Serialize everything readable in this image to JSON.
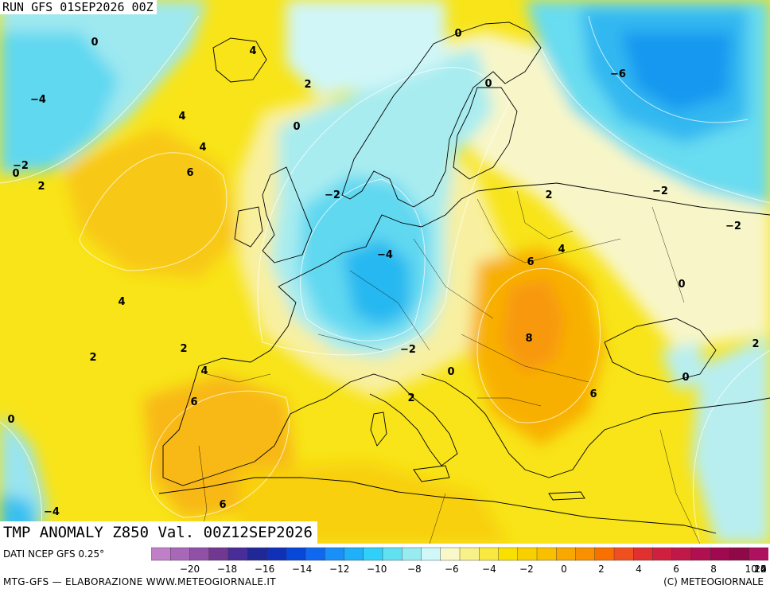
{
  "header": {
    "run": "RUN GFS 01SEP2026 00Z"
  },
  "title": "TMP ANOMALY Z850 Val. 00Z12SEP2026",
  "footer": {
    "source": "DATI NCEP GFS 0.25°",
    "credit": "MTG-GFS — ELABORAZIONE WWW.METEOGIORNALE.IT",
    "copyright": "(C) METEOGIORNALE"
  },
  "colorbar": {
    "tick_labels": [
      "−20",
      "−18",
      "−16",
      "−14",
      "−12",
      "−10",
      "−8",
      "−6",
      "−4",
      "−2",
      "0",
      "2",
      "4",
      "6",
      "8",
      "10",
      "12",
      "14",
      "16",
      "20"
    ],
    "colors": [
      "#c080c8",
      "#a868b8",
      "#9050a8",
      "#703890",
      "#482c98",
      "#202898",
      "#1030b8",
      "#0848d8",
      "#1068f0",
      "#1890f8",
      "#20b0f8",
      "#30d0f8",
      "#60e0f0",
      "#98ecf0",
      "#d0f8f8",
      "#f8f8c8",
      "#f8f088",
      "#f8e840",
      "#f8e000",
      "#f8d000",
      "#f8c000",
      "#f8a800",
      "#f89000",
      "#f87000",
      "#f05020",
      "#e03030",
      "#d02040",
      "#c01848",
      "#b01050",
      "#a00850",
      "#900848",
      "#b01060"
    ]
  },
  "contour_labels": [
    {
      "text": "0",
      "pos": "Atlantic north"
    },
    {
      "text": "4",
      "pos": "Iceland"
    },
    {
      "text": "2",
      "pos": "Norwegian Sea"
    },
    {
      "text": "0",
      "pos": "Norway coast"
    },
    {
      "text": "0",
      "pos": "Barents"
    },
    {
      "text": "0",
      "pos": "Finland"
    },
    {
      "text": "−6",
      "pos": "Russia north"
    },
    {
      "text": "−4",
      "pos": "Greenland"
    },
    {
      "text": "4",
      "pos": "Atlantic A"
    },
    {
      "text": "4",
      "pos": "Atlantic B"
    },
    {
      "text": "6",
      "pos": "Atlantic C"
    },
    {
      "text": "−2",
      "pos": "Atlantic west"
    },
    {
      "text": "0",
      "pos": "Atlantic west 2"
    },
    {
      "text": "2",
      "pos": "Atlantic west 3"
    },
    {
      "text": "−2",
      "pos": "North Sea"
    },
    {
      "text": "2",
      "pos": "Baltic states"
    },
    {
      "text": "−2",
      "pos": "Russia"
    },
    {
      "text": "−2",
      "pos": "Russia east"
    },
    {
      "text": "−4",
      "pos": "Germany"
    },
    {
      "text": "6",
      "pos": "Ukraine west"
    },
    {
      "text": "4",
      "pos": "Ukraine"
    },
    {
      "text": "0",
      "pos": "Ukraine east"
    },
    {
      "text": "4",
      "pos": "Biscay"
    },
    {
      "text": "2",
      "pos": "Atlantic SW"
    },
    {
      "text": "8",
      "pos": "Romania"
    },
    {
      "text": "2",
      "pos": "Black Sea east"
    },
    {
      "text": "2",
      "pos": "Bay of Biscay"
    },
    {
      "text": "4",
      "pos": "Spain north"
    },
    {
      "text": "−2",
      "pos": "Alps"
    },
    {
      "text": "0",
      "pos": "Italy north"
    },
    {
      "text": "0",
      "pos": "Black Sea"
    },
    {
      "text": "6",
      "pos": "Portugal"
    },
    {
      "text": "2",
      "pos": "Tyrrhenian"
    },
    {
      "text": "6",
      "pos": "Balkans"
    },
    {
      "text": "0",
      "pos": "Atlantic south"
    },
    {
      "text": "6",
      "pos": "Algeria"
    },
    {
      "text": "−4",
      "pos": "Atlantic SW corner"
    }
  ]
}
